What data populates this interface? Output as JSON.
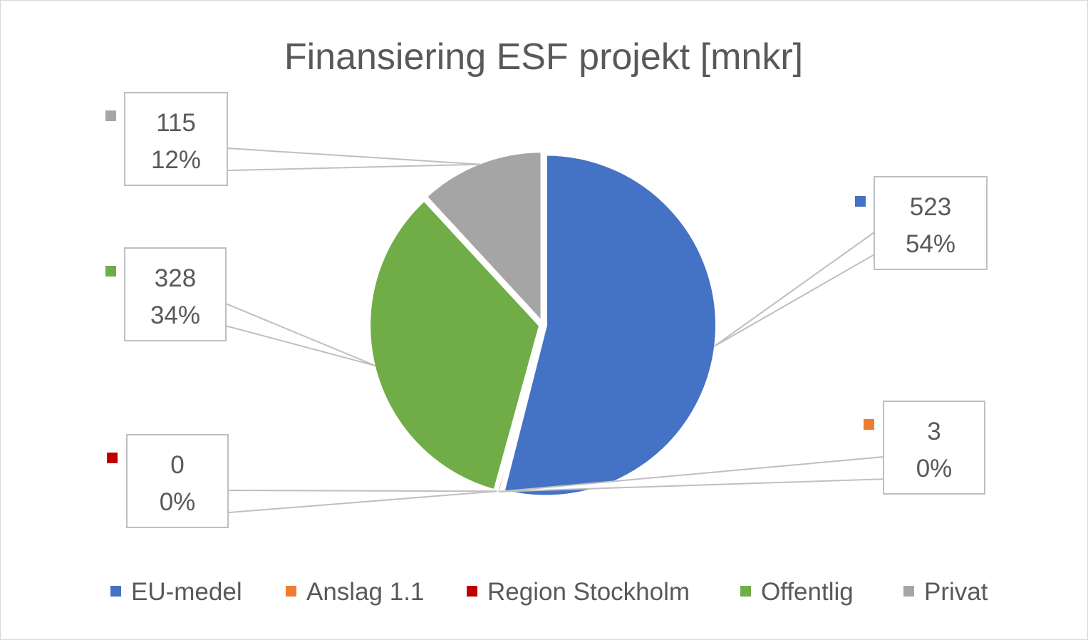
{
  "chart_data": {
    "type": "pie",
    "title": "Finansiering ESF projekt [mnkr]",
    "categories": [
      "EU-medel",
      "Anslag 1.1",
      "Region Stockholm",
      "Offentlig",
      "Privat"
    ],
    "values": [
      523,
      3,
      0,
      328,
      115
    ],
    "percent_labels": [
      "54%",
      "0%",
      "0%",
      "34%",
      "12%"
    ],
    "value_labels": [
      "523",
      "3",
      "0",
      "328",
      "115"
    ],
    "colors": [
      "#4472c4",
      "#ed7d31",
      "#c00000",
      "#70ad47",
      "#a5a5a5"
    ],
    "legend_position": "bottom",
    "exploded": true
  }
}
